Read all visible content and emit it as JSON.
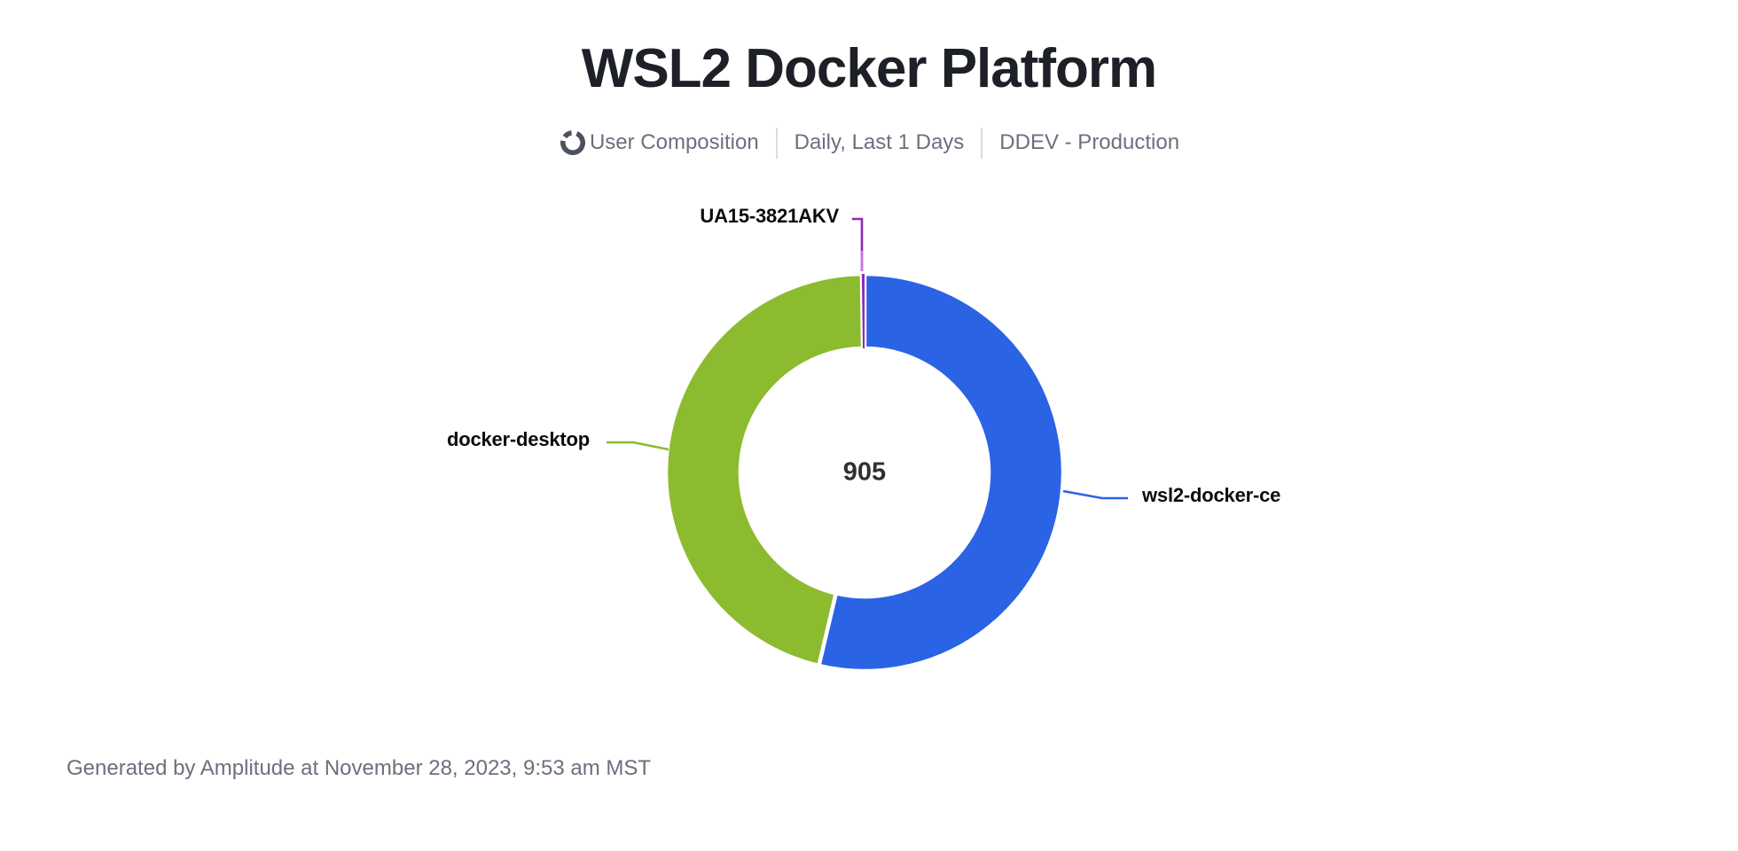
{
  "page": {
    "background": "#ffffff"
  },
  "header": {
    "title": "WSL2 Docker Platform",
    "metric_type": "User Composition",
    "date_range": "Daily, Last 1 Days",
    "project": "DDEV - Production"
  },
  "chart_data": {
    "type": "pie",
    "subtype": "donut",
    "title": "WSL2 Docker Platform",
    "center_total": "905",
    "total": 905,
    "start_angle_deg": -0.8,
    "direction": "clockwise-from-top",
    "legend_position": "outside-callout-labels",
    "segments": [
      {
        "label": "UA15-3821AKV",
        "value": 2,
        "color": "#9128b8",
        "color_light": "#c878de"
      },
      {
        "label": "wsl2-docker-ce",
        "value": 486,
        "color": "#2b63e5"
      },
      {
        "label": "docker-desktop",
        "value": 417,
        "color": "#8cbb30"
      }
    ]
  },
  "footer": {
    "text": "Generated by Amplitude at November 28, 2023, 9:53 am MST"
  },
  "colors": {
    "title_text": "#1d2026",
    "meta_text": "#6a707d",
    "meta_divider": "#d8dbe1",
    "meta_icon": "#4b515e",
    "segment_label_text": "#0b0c0e",
    "center_total_text": "#2e3033",
    "footer_text": "#6a707d",
    "background": "#ffffff"
  }
}
